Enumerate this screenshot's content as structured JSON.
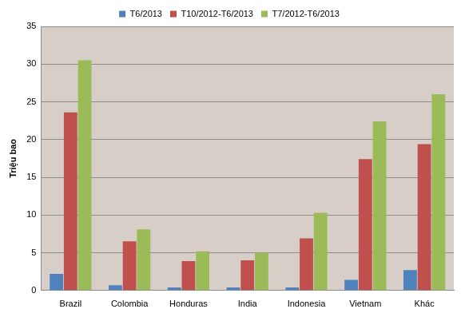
{
  "chart_data": {
    "type": "bar",
    "y_label": "Triệu bao",
    "categories": [
      "Brazil",
      "Colombia",
      "Honduras",
      "India",
      "Indonesia",
      "Vietnam",
      "Khác"
    ],
    "series": [
      {
        "name": "T6/2013",
        "color": "#4f81bd",
        "values": [
          2.2,
          0.7,
          0.4,
          0.4,
          0.4,
          1.4,
          2.7
        ]
      },
      {
        "name": "T10/2012-T6/2013",
        "color": "#c0504d",
        "values": [
          23.6,
          6.5,
          3.9,
          4.0,
          6.9,
          17.4,
          19.4
        ]
      },
      {
        "name": "T7/2012-T6/2013",
        "color": "#9bbb59",
        "values": [
          30.5,
          8.1,
          5.2,
          5.0,
          10.3,
          22.4,
          26.0
        ]
      }
    ],
    "ylim": [
      0,
      35
    ],
    "yticks": [
      0,
      5,
      10,
      15,
      20,
      25,
      30,
      35
    ],
    "grid": true,
    "legend": "top"
  }
}
